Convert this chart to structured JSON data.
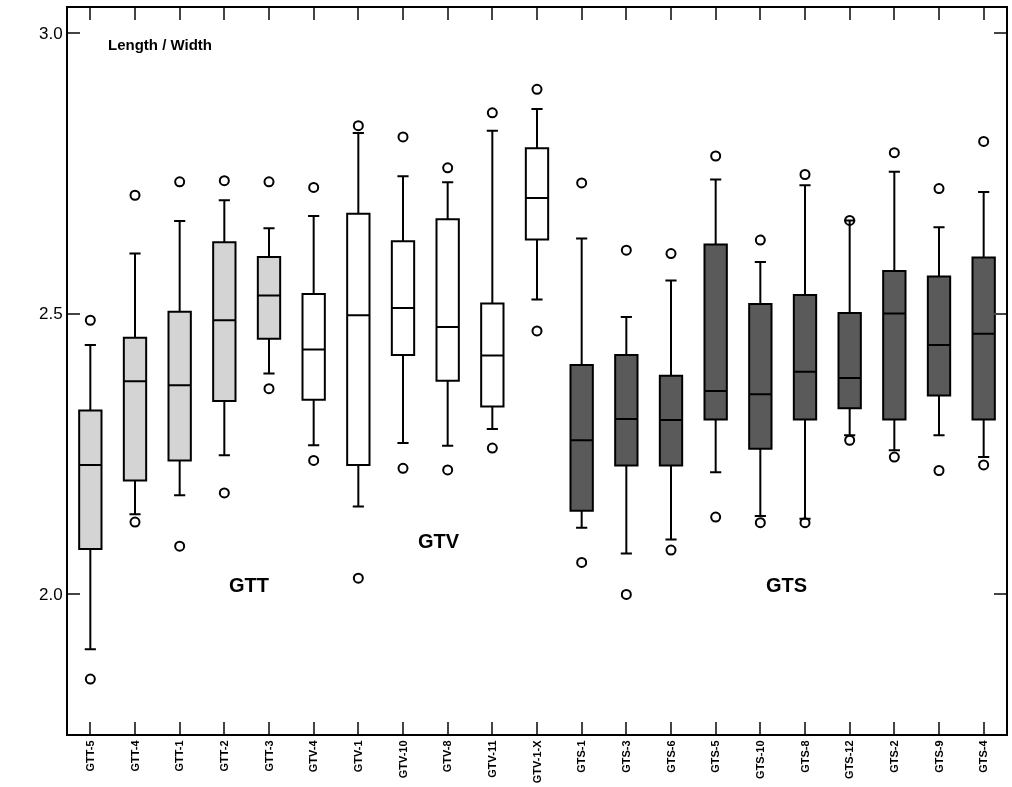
{
  "chart_data": {
    "type": "box",
    "title": "Length / Width",
    "categories": [
      "GTT-5",
      "GTT-4",
      "GTT-1",
      "GTT-2",
      "GTT-3",
      "GTV-4",
      "GTV-1",
      "GTV-10",
      "GTV-8",
      "GTV-11",
      "GTV-1-X",
      "GTS-1",
      "GTS-3",
      "GTS-6",
      "GTS-5",
      "GTS-10",
      "GTS-8",
      "GTS-12",
      "GTS-2",
      "GTS-9",
      "GTS-4"
    ],
    "ylim": [
      1.75,
      3.045
    ],
    "yticks": [
      {
        "value": 2.0,
        "label": "2.0"
      },
      {
        "value": 2.5,
        "label": "2.5"
      },
      {
        "value": 3.0,
        "label": "3.0"
      }
    ],
    "marker": "circle",
    "annotations": [
      "GTT",
      "GTV",
      "GTS"
    ],
    "series": [
      {
        "color": "#d4d4d4",
        "boxes": [
          {
            "low": 1.901,
            "q1": 2.08,
            "median": 2.23,
            "q3": 2.327,
            "high": 2.444,
            "outliers": [
              2.488,
              1.848
            ]
          },
          {
            "low": 2.142,
            "q1": 2.202,
            "median": 2.379,
            "q3": 2.457,
            "high": 2.607,
            "outliers": [
              2.711,
              2.128
            ]
          },
          {
            "low": 2.176,
            "q1": 2.238,
            "median": 2.372,
            "q3": 2.503,
            "high": 2.665,
            "outliers": [
              2.735,
              2.085
            ]
          },
          {
            "low": 2.247,
            "q1": 2.344,
            "median": 2.488,
            "q3": 2.627,
            "high": 2.702,
            "outliers": [
              2.737,
              2.18
            ]
          },
          {
            "low": 2.393,
            "q1": 2.455,
            "median": 2.532,
            "q3": 2.601,
            "high": 2.652,
            "outliers": [
              2.735,
              2.366
            ]
          },
          null,
          null,
          null,
          null,
          null,
          null,
          null,
          null,
          null,
          null,
          null,
          null,
          null,
          null,
          null,
          null
        ]
      },
      {
        "color": "#ffffff",
        "boxes": [
          null,
          null,
          null,
          null,
          null,
          {
            "low": 2.265,
            "q1": 2.346,
            "median": 2.436,
            "q3": 2.535,
            "high": 2.674,
            "outliers": [
              2.725,
              2.238
            ]
          },
          {
            "low": 2.156,
            "q1": 2.23,
            "median": 2.497,
            "q3": 2.678,
            "high": 2.822,
            "outliers": [
              2.835,
              2.028
            ]
          },
          {
            "low": 2.269,
            "q1": 2.426,
            "median": 2.51,
            "q3": 2.629,
            "high": 2.745,
            "outliers": [
              2.815,
              2.224
            ]
          },
          {
            "low": 2.264,
            "q1": 2.38,
            "median": 2.476,
            "q3": 2.668,
            "high": 2.734,
            "outliers": [
              2.76,
              2.221
            ]
          },
          {
            "low": 2.294,
            "q1": 2.334,
            "median": 2.425,
            "q3": 2.518,
            "high": 2.826,
            "outliers": [
              2.858,
              2.26
            ]
          },
          {
            "low": 2.525,
            "q1": 2.632,
            "median": 2.706,
            "q3": 2.795,
            "high": 2.865,
            "outliers": [
              2.9,
              2.469
            ]
          },
          null,
          null,
          null,
          null,
          null,
          null,
          null,
          null,
          null,
          null
        ]
      },
      {
        "color": "#5a5a5a",
        "boxes": [
          null,
          null,
          null,
          null,
          null,
          null,
          null,
          null,
          null,
          null,
          null,
          {
            "low": 2.118,
            "q1": 2.148,
            "median": 2.274,
            "q3": 2.408,
            "high": 2.634,
            "outliers": [
              2.733,
              2.056
            ]
          },
          {
            "low": 2.072,
            "q1": 2.229,
            "median": 2.312,
            "q3": 2.426,
            "high": 2.494,
            "outliers": [
              2.613,
              1.999
            ]
          },
          {
            "low": 2.097,
            "q1": 2.229,
            "median": 2.31,
            "q3": 2.389,
            "high": 2.559,
            "outliers": [
              2.607,
              2.078
            ]
          },
          {
            "low": 2.217,
            "q1": 2.311,
            "median": 2.362,
            "q3": 2.623,
            "high": 2.739,
            "outliers": [
              2.781,
              2.137
            ]
          },
          {
            "low": 2.139,
            "q1": 2.259,
            "median": 2.356,
            "q3": 2.517,
            "high": 2.592,
            "outliers": [
              2.631,
              2.127
            ]
          },
          {
            "low": 2.134,
            "q1": 2.311,
            "median": 2.396,
            "q3": 2.533,
            "high": 2.729,
            "outliers": [
              2.748,
              2.127
            ]
          },
          {
            "low": 2.283,
            "q1": 2.331,
            "median": 2.385,
            "q3": 2.501,
            "high": 2.666,
            "outliers": [
              2.666,
              2.274
            ]
          },
          {
            "low": 2.256,
            "q1": 2.311,
            "median": 2.5,
            "q3": 2.576,
            "high": 2.753,
            "outliers": [
              2.787,
              2.244
            ]
          },
          {
            "low": 2.283,
            "q1": 2.354,
            "median": 2.444,
            "q3": 2.566,
            "high": 2.654,
            "outliers": [
              2.723,
              2.22
            ]
          },
          {
            "low": 2.244,
            "q1": 2.311,
            "median": 2.464,
            "q3": 2.6,
            "high": 2.717,
            "outliers": [
              2.807,
              2.23
            ]
          }
        ]
      }
    ]
  }
}
